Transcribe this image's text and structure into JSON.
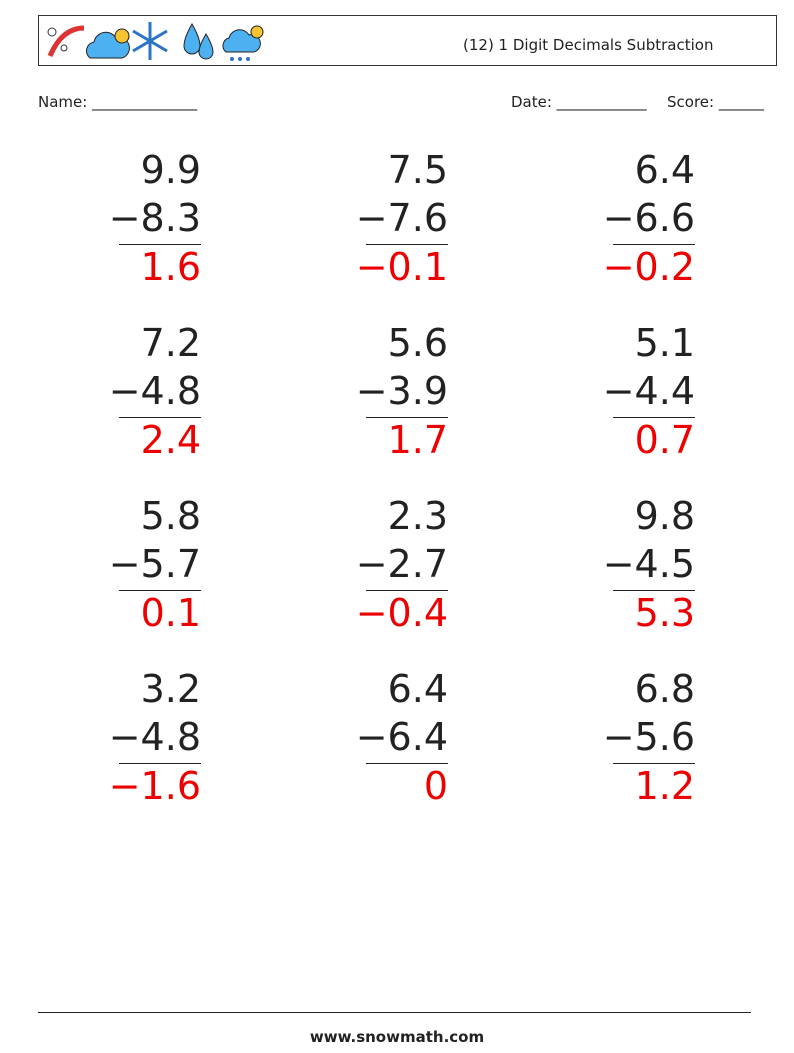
{
  "header": {
    "title": "(12) 1 Digit Decimals Subtraction"
  },
  "fields": {
    "name": "Name: ______________",
    "date": "Date: ____________",
    "score": "Score: ______"
  },
  "problems": [
    {
      "top": "9.9",
      "bottom": "−8.3",
      "answer": "1.6"
    },
    {
      "top": "7.5",
      "bottom": "−7.6",
      "answer": "−0.1"
    },
    {
      "top": "6.4",
      "bottom": "−6.6",
      "answer": "−0.2"
    },
    {
      "top": "7.2",
      "bottom": "−4.8",
      "answer": "2.4"
    },
    {
      "top": "5.6",
      "bottom": "−3.9",
      "answer": "1.7"
    },
    {
      "top": "5.1",
      "bottom": "−4.4",
      "answer": "0.7"
    },
    {
      "top": "5.8",
      "bottom": "−5.7",
      "answer": "0.1"
    },
    {
      "top": "2.3",
      "bottom": "−2.7",
      "answer": "−0.4"
    },
    {
      "top": "9.8",
      "bottom": "−4.5",
      "answer": "5.3"
    },
    {
      "top": "3.2",
      "bottom": "−4.8",
      "answer": "−1.6"
    },
    {
      "top": "6.4",
      "bottom": "−6.4",
      "answer": "0"
    },
    {
      "top": "6.8",
      "bottom": "−5.6",
      "answer": "1.2"
    }
  ],
  "footer": {
    "site": "www.snowmath.com"
  }
}
